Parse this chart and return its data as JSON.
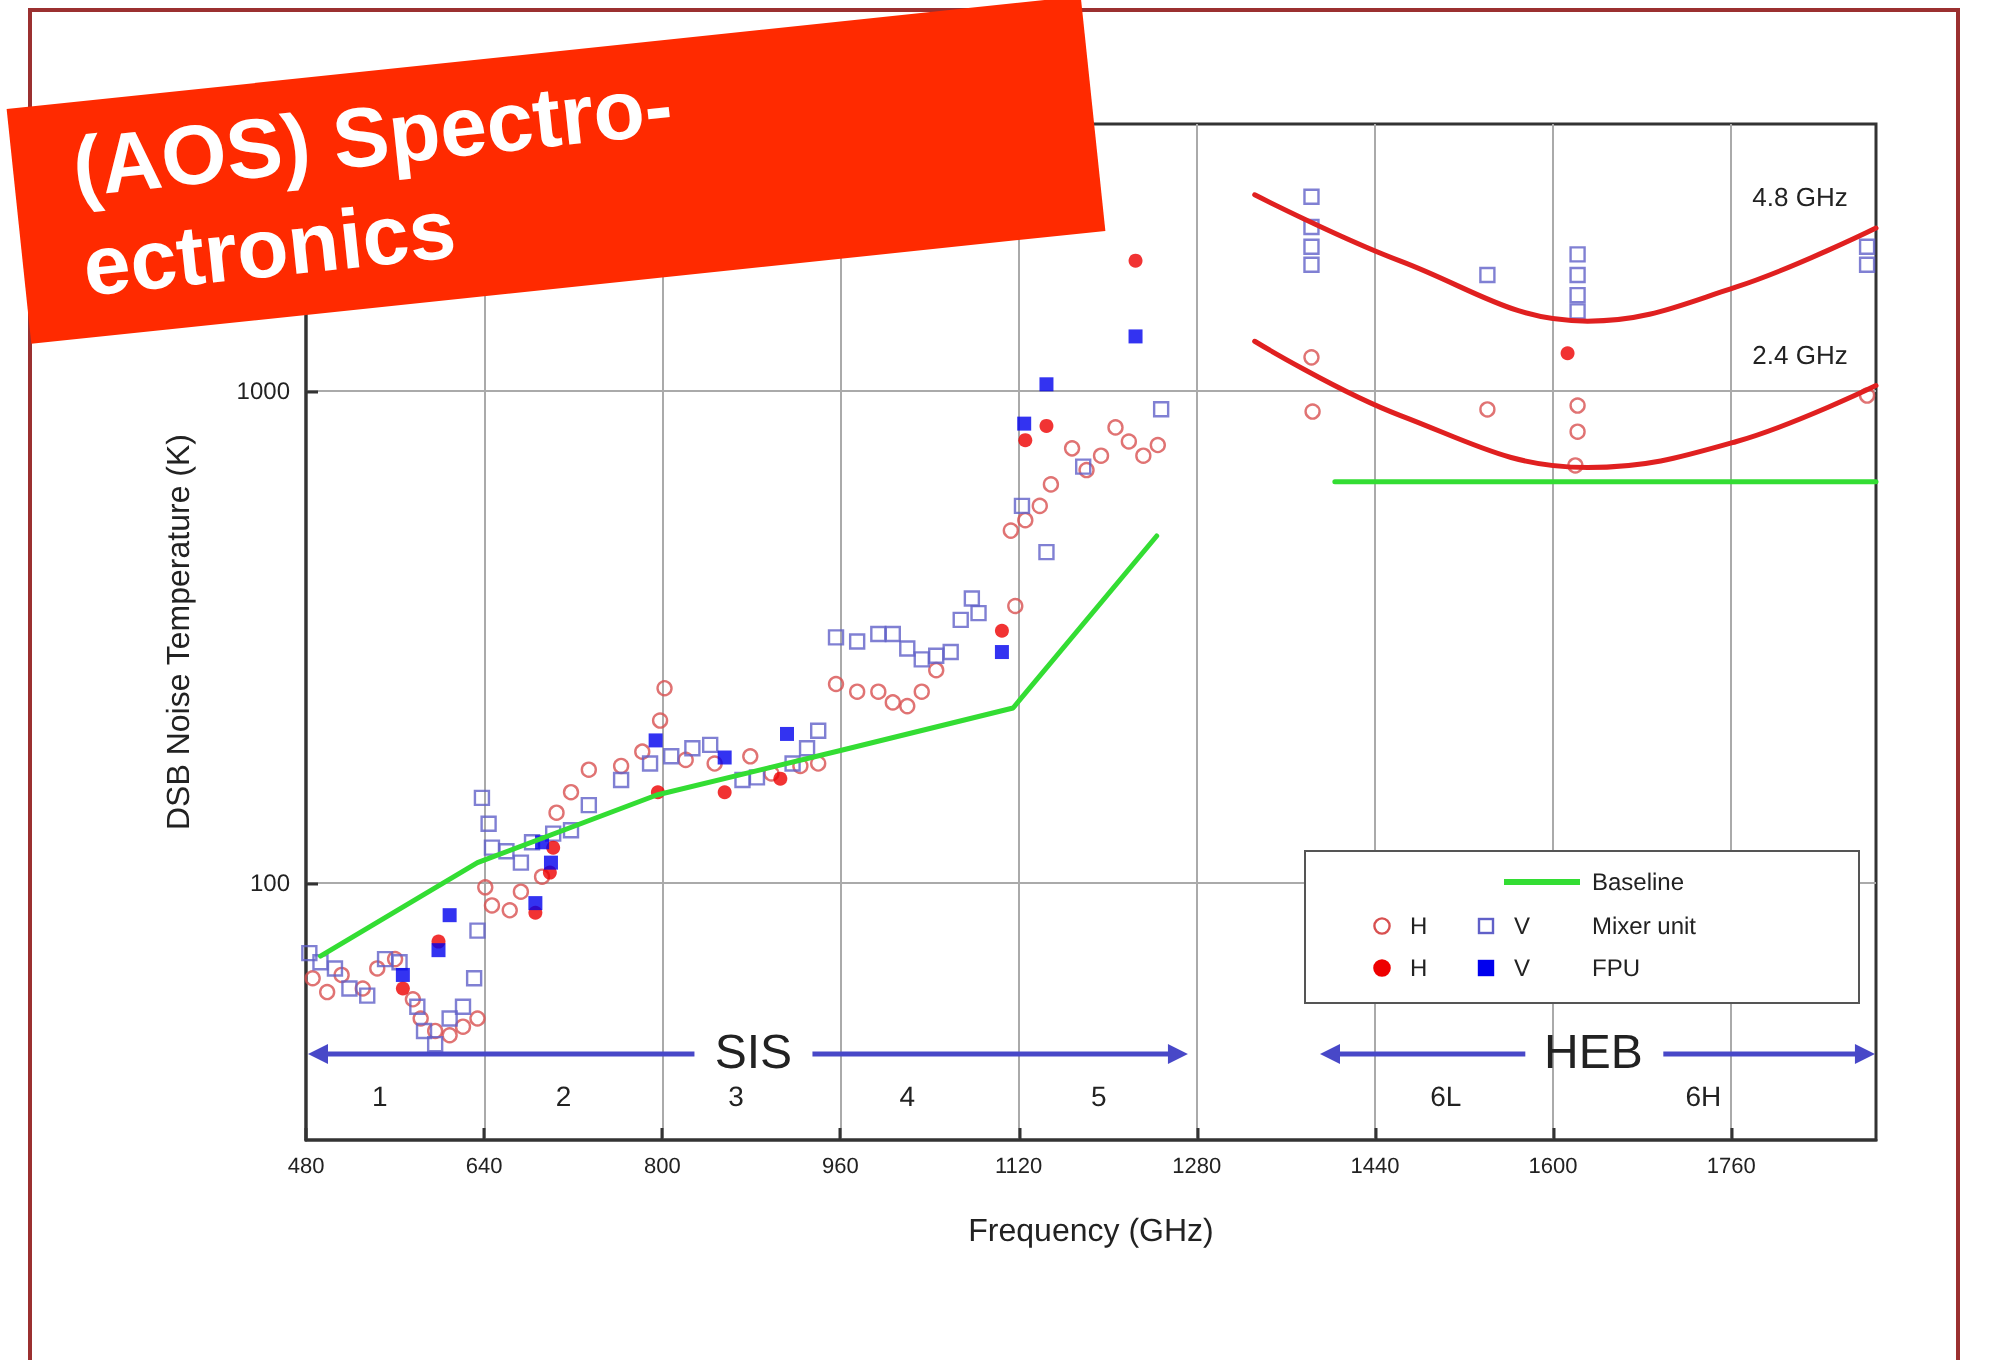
{
  "chart_data": {
    "type": "scatter",
    "title": "(AOS) Spectro- ectronics",
    "xlabel": "Frequency (GHz)",
    "ylabel": "DSB Noise Temperature (K)",
    "xlim": [
      480,
      1890
    ],
    "xticks": [
      480,
      640,
      800,
      960,
      1120,
      1280,
      1440,
      1600,
      1760
    ],
    "ylim": [
      30,
      3500
    ],
    "yticks": [
      100,
      1000
    ],
    "log": "y",
    "grid": true,
    "legend": "bottom right",
    "series": [
      {
        "name": "Baseline",
        "type": "line",
        "color": "#33dd33",
        "marker": "none",
        "line_style": "solid",
        "x": [
          493,
          634,
          795,
          960,
          1115,
          1244,
          1300,
          1404,
          1890
        ],
        "values": [
          71,
          110,
          151,
          186,
          227,
          508,
          null,
          655,
          655
        ]
      },
      {
        "name": "H",
        "marker": "circle",
        "color": "#d85050",
        "x": [
          486,
          499,
          512,
          531,
          544,
          560,
          576,
          583,
          596,
          609,
          621,
          634,
          641,
          647,
          663,
          673,
          692,
          705,
          718,
          734,
          763,
          782,
          798,
          802,
          821,
          847,
          879,
          898,
          924,
          940,
          956,
          975,
          994,
          1007,
          1020,
          1033,
          1046,
          1117,
          1113,
          1126,
          1139,
          1149,
          1168,
          1181,
          1194,
          1207,
          1219,
          1232,
          1245,
          1383,
          1384,
          1541,
          1622,
          1622,
          1620,
          1882
        ],
        "values": [
          64,
          60,
          65,
          61,
          67,
          70,
          58,
          53,
          50,
          49,
          51,
          53,
          98,
          90,
          88,
          96,
          103,
          139,
          153,
          170,
          173,
          185,
          214,
          249,
          178,
          175,
          181,
          167,
          173,
          175,
          254,
          245,
          245,
          233,
          229,
          245,
          271,
          366,
          521,
          547,
          585,
          647,
          766,
          692,
          740,
          845,
          791,
          740,
          778,
          1173,
          910,
          919,
          936,
          828,
          707,
          981
        ]
      },
      {
        "name": "V",
        "marker": "square",
        "color": "#6060c8",
        "x": [
          483,
          493,
          506,
          519,
          535,
          551,
          564,
          580,
          586,
          596,
          609,
          621,
          631,
          634,
          638,
          644,
          647,
          660,
          673,
          683,
          702,
          718,
          734,
          763,
          789,
          808,
          827,
          843,
          872,
          885,
          917,
          930,
          940,
          956,
          975,
          994,
          1007,
          1020,
          1033,
          1046,
          1059,
          1068,
          1078,
          1084,
          1123,
          1145,
          1178,
          1248,
          1383,
          1383,
          1383,
          1383,
          1541,
          1622,
          1622,
          1622,
          1622,
          1882,
          1882
        ],
        "values": [
          72,
          69,
          67,
          61,
          59,
          70,
          69,
          56,
          50,
          47,
          53,
          56,
          64,
          80,
          149,
          132,
          118,
          116,
          110,
          121,
          126,
          128,
          144,
          162,
          175,
          181,
          188,
          191,
          162,
          164,
          175,
          188,
          204,
          316,
          310,
          321,
          321,
          300,
          285,
          290,
          295,
          343,
          379,
          354,
          585,
          471,
          703,
          920,
          2490,
          2160,
          1970,
          1810,
          1725,
          1900,
          1725,
          1570,
          1455,
          1970,
          1810
        ]
      },
      {
        "name": "H",
        "marker": "circle",
        "color": "#ee0000",
        "x": [
          567,
          599,
          686,
          699,
          702,
          796,
          856,
          906,
          1105,
          1126,
          1145,
          1225,
          1613
        ],
        "values": [
          61,
          76,
          87,
          105,
          118,
          153,
          153,
          163,
          326,
          796,
          851,
          1845,
          1196
        ]
      },
      {
        "name": "V",
        "marker": "square",
        "color": "#0000ee",
        "x": [
          567,
          609,
          599,
          686,
          692,
          700,
          794,
          856,
          912,
          1105,
          1125,
          1145,
          1225
        ],
        "values": [
          65,
          86,
          73,
          91,
          121,
          110,
          195,
          180,
          201,
          295,
          860,
          1034,
          1294
        ]
      },
      {
        "name": "4.8 GHz",
        "type": "line",
        "color": "#e02020",
        "marker": "none",
        "line_style": "solid",
        "x": [
          1332,
          1463,
          1631,
          1764,
          1890
        ],
        "values": [
          2512,
          1841,
          1390,
          1630,
          2150
        ]
      },
      {
        "name": "2.4 GHz",
        "type": "line",
        "color": "#e02020",
        "marker": "none",
        "line_style": "solid",
        "x": [
          1332,
          1463,
          1631,
          1764,
          1890
        ],
        "values": [
          1265,
          893,
          700,
          790,
          1028
        ]
      }
    ],
    "annotations": [
      "SIS",
      "HEB",
      "1",
      "2",
      "3",
      "4",
      "5",
      "6L",
      "6H",
      "Mixer unit",
      "FPU"
    ]
  }
}
